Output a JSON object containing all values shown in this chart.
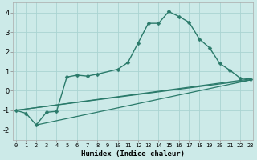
{
  "xlabel": "Humidex (Indice chaleur)",
  "x_main": [
    0,
    1,
    2,
    3,
    4,
    5,
    6,
    7,
    8,
    10,
    11,
    12,
    13,
    14,
    15,
    16,
    17,
    18,
    19,
    20,
    21,
    22,
    23
  ],
  "y_main": [
    -1.0,
    -1.15,
    -1.75,
    -1.1,
    -1.05,
    0.7,
    0.8,
    0.75,
    0.85,
    1.1,
    1.45,
    2.45,
    3.45,
    3.45,
    4.05,
    3.8,
    3.5,
    2.65,
    2.2,
    1.4,
    1.05,
    0.65,
    0.6
  ],
  "straight_lines": [
    {
      "x": [
        0,
        23
      ],
      "y": [
        -1.0,
        0.6
      ]
    },
    {
      "x": [
        0,
        23
      ],
      "y": [
        -1.0,
        0.55
      ]
    },
    {
      "x": [
        2,
        23
      ],
      "y": [
        -1.75,
        0.55
      ]
    }
  ],
  "ylim": [
    -2.5,
    4.5
  ],
  "xlim": [
    -0.3,
    23.3
  ],
  "bg_color": "#cceae8",
  "grid_color": "#aad4d2",
  "line_color": "#2a7a6a",
  "marker": "D",
  "marker_size": 2.5,
  "xticks": [
    0,
    1,
    2,
    3,
    4,
    5,
    6,
    7,
    8,
    9,
    10,
    11,
    12,
    13,
    14,
    15,
    16,
    17,
    18,
    19,
    20,
    21,
    22,
    23
  ],
  "yticks": [
    -2,
    -1,
    0,
    1,
    2,
    3,
    4
  ],
  "xtick_labels": [
    "0",
    "1",
    "2",
    "3",
    "4",
    "5",
    "6",
    "7",
    "8",
    "9",
    "10",
    "11",
    "12",
    "13",
    "14",
    "15",
    "16",
    "17",
    "18",
    "19",
    "20",
    "21",
    "22",
    "23"
  ],
  "ytick_labels": [
    "-2",
    "-1",
    "0",
    "1",
    "2",
    "3",
    "4"
  ],
  "xlabel_fontsize": 6.5,
  "tick_fontsize": 5.0,
  "linewidth_main": 1.0,
  "linewidth_straight": 0.9
}
